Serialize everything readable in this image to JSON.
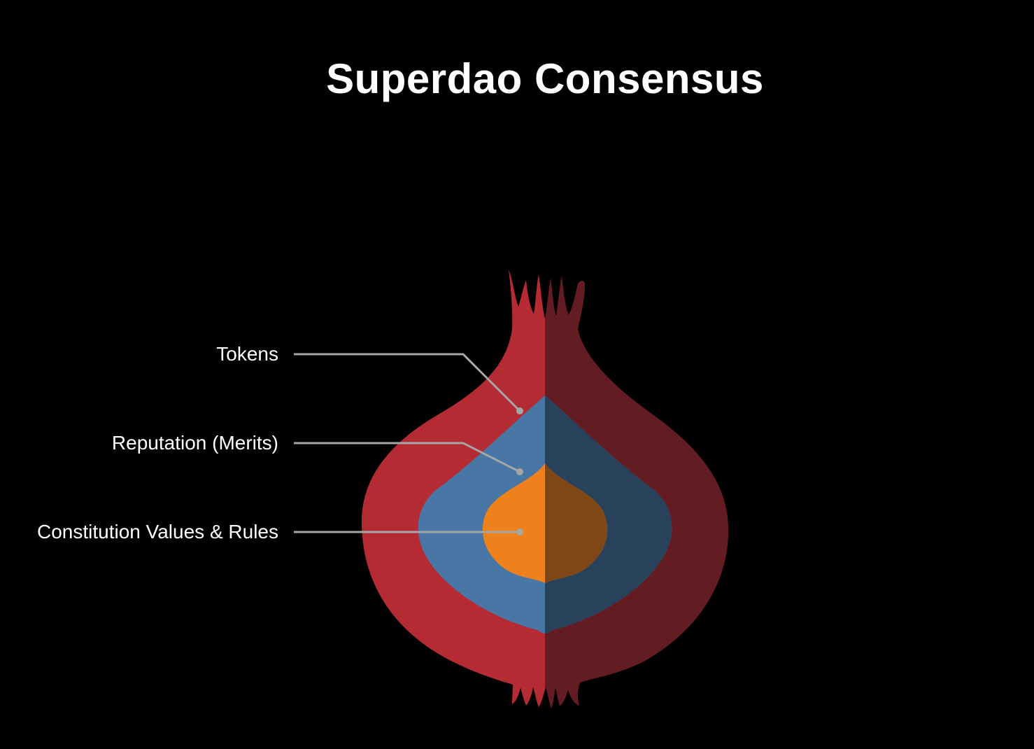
{
  "title": "Superdao Consensus",
  "layers": [
    {
      "label": "Tokens",
      "color_light": "#b52b33",
      "color_dark": "#631c21"
    },
    {
      "label": "Reputation (Merits)",
      "color_light": "#4877a6",
      "color_dark": "#29425c"
    },
    {
      "label": "Constitution Values & Rules",
      "color_light": "#ee811b",
      "color_dark": "#7e4715"
    }
  ],
  "background": "#000000",
  "leader_line_color": "#a6a6a6",
  "icon": "onion-icon"
}
